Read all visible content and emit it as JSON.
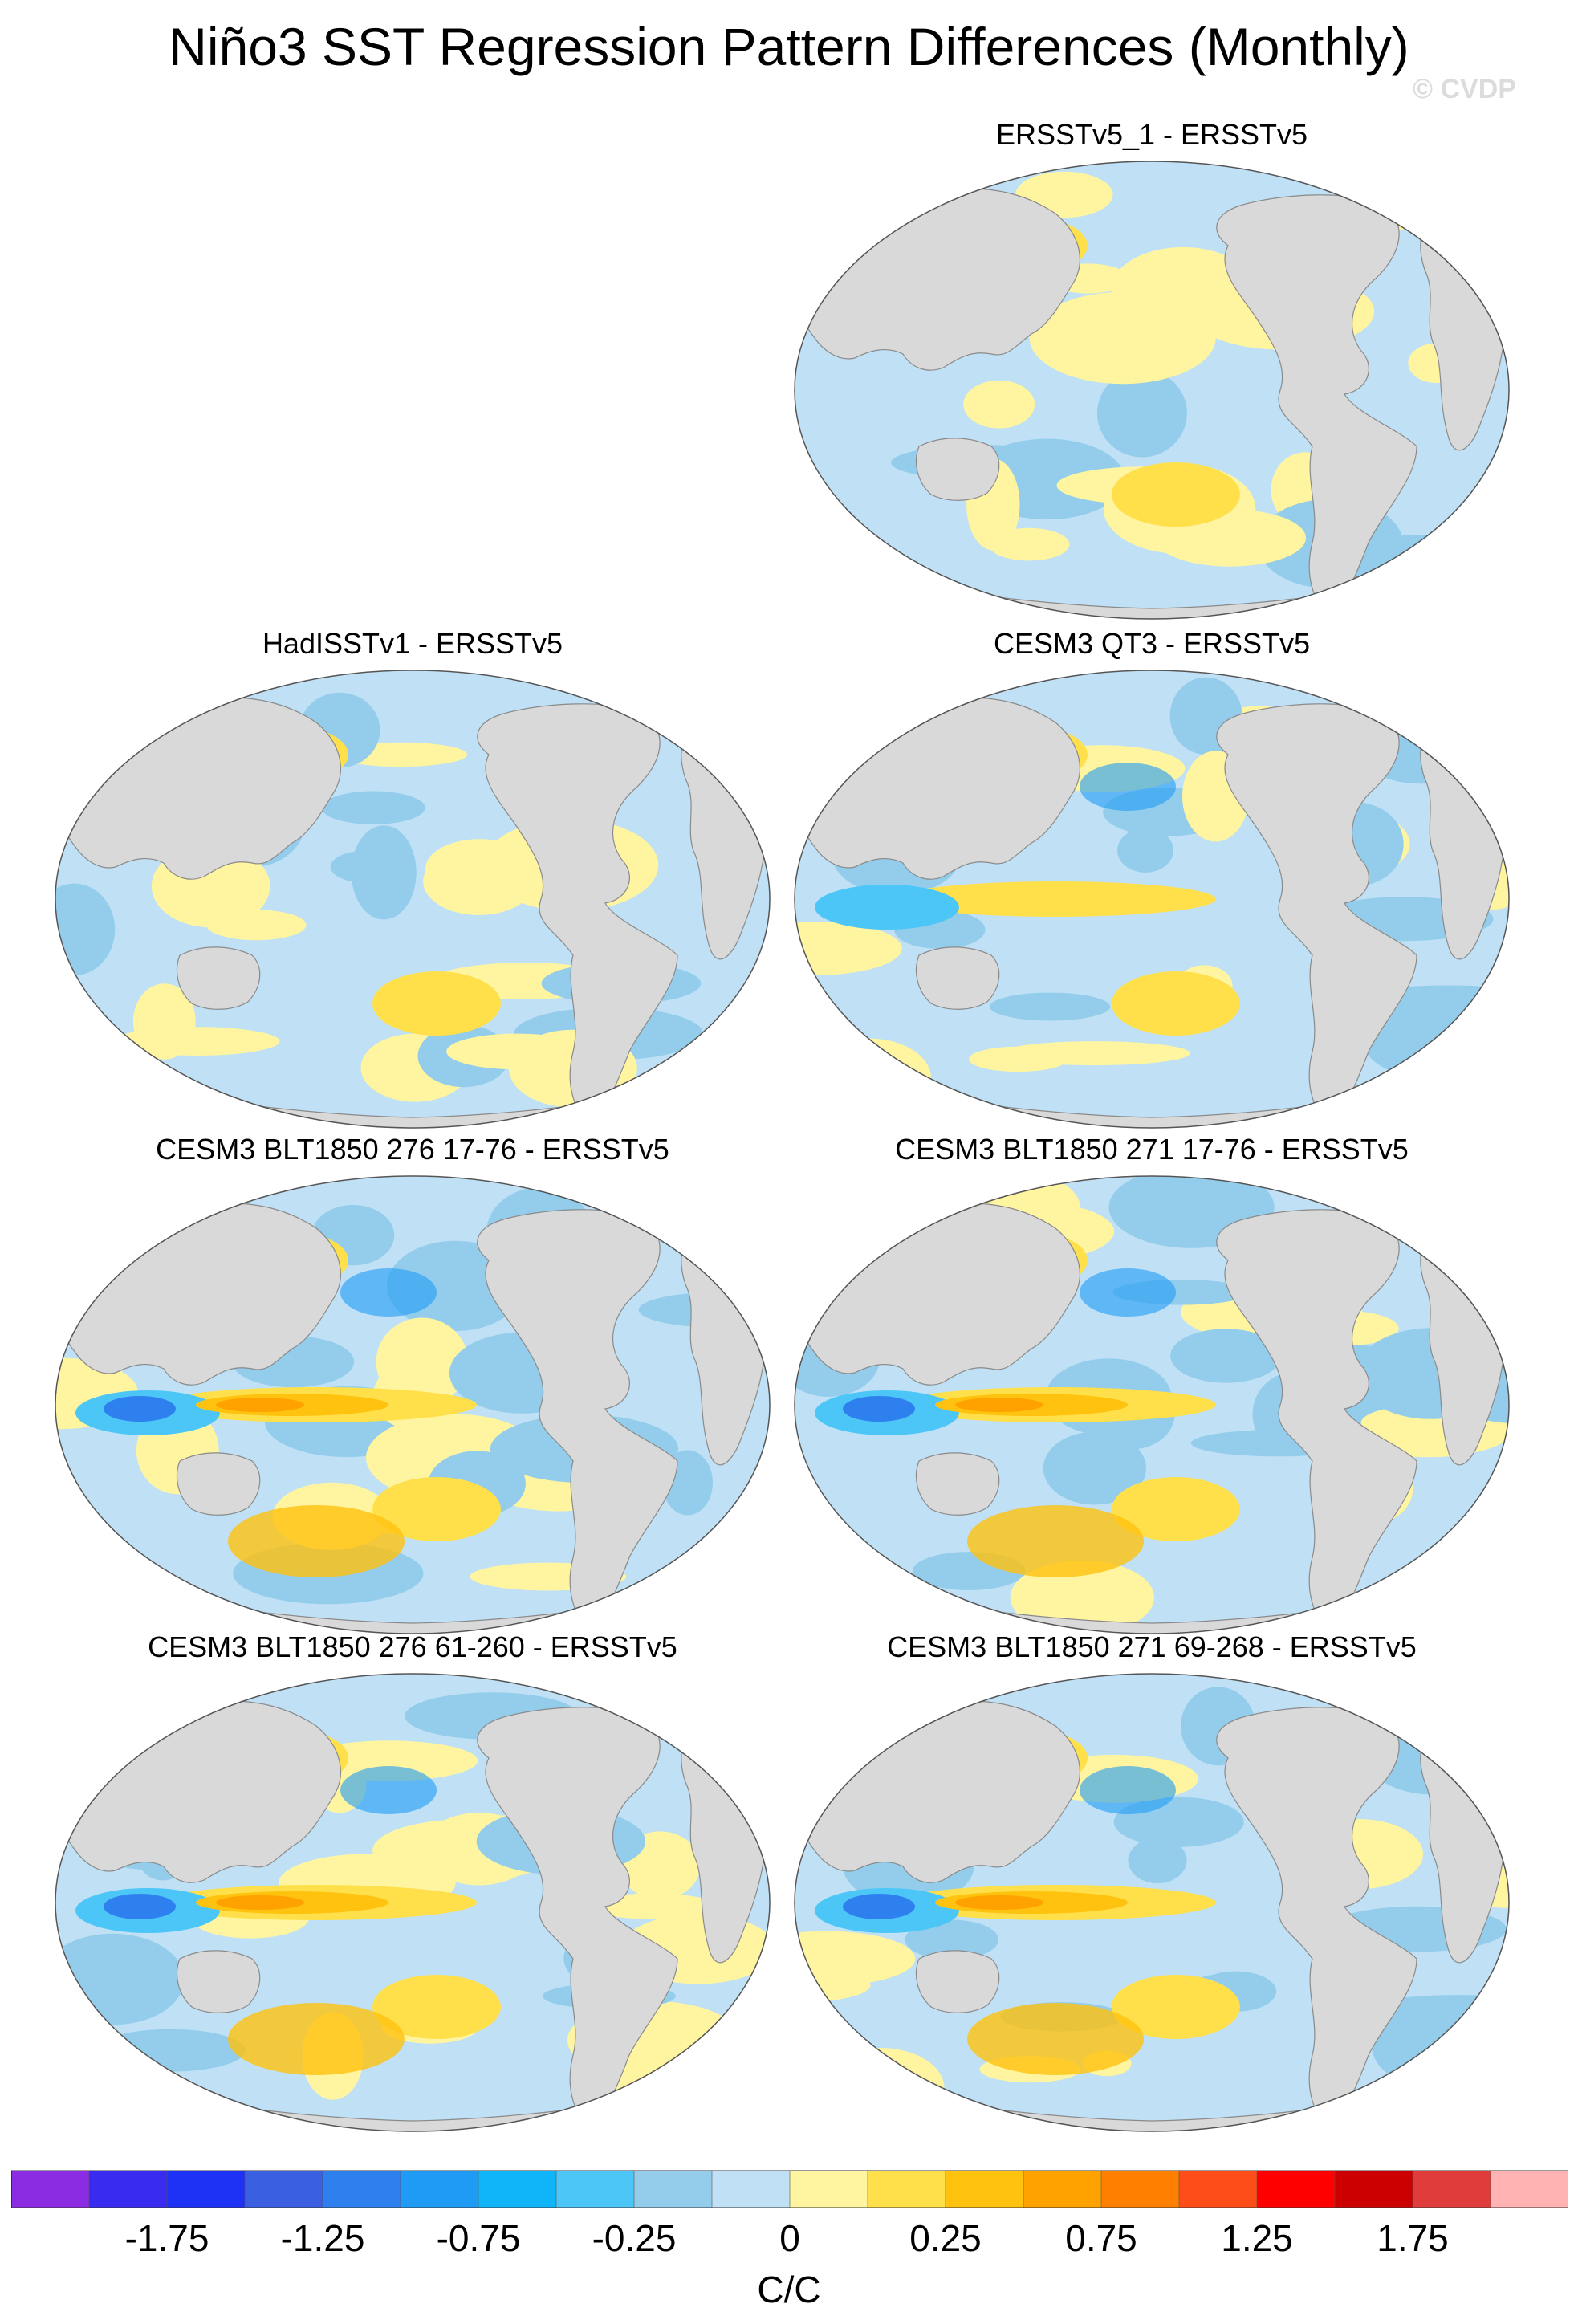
{
  "title": "Niño3 SST Regression Pattern Differences (Monthly)",
  "copyright": "© CVDP",
  "colors": {
    "ocean_base": "#bfe0f5",
    "land": "#d9d9d9",
    "land_outline": "#8a8a8a"
  },
  "panels": [
    {
      "title": "ERSSTv5_1 - ERSSTv5",
      "intensity": 1
    },
    {
      "title": "HadISSTv1 - ERSSTv5",
      "intensity": 1
    },
    {
      "title": "CESM3 QT3 - ERSSTv5",
      "intensity": 2
    },
    {
      "title": "CESM3 BLT1850 276 17-76 - ERSSTv5",
      "intensity": 3
    },
    {
      "title": "CESM3 BLT1850 271 17-76 - ERSSTv5",
      "intensity": 3
    },
    {
      "title": "CESM3 BLT1850 276 61-260 - ERSSTv5",
      "intensity": 3
    },
    {
      "title": "CESM3 BLT1850 271 69-268 - ERSSTv5",
      "intensity": 3
    }
  ],
  "colorbar": {
    "units": "C/C",
    "labels": [
      "-1.75",
      "-1.25",
      "-0.75",
      "-0.25",
      "0",
      "0.25",
      "0.75",
      "1.25",
      "1.75"
    ],
    "colors": [
      "#8b2be2",
      "#3a2bf0",
      "#1e32f5",
      "#3a5fe0",
      "#2f80ef",
      "#1f9bf5",
      "#0fb5f8",
      "#4cc6f7",
      "#93cdeb",
      "#bfe0f5",
      "#fff5a0",
      "#ffe04a",
      "#ffc20e",
      "#ffa200",
      "#ff7f00",
      "#ff4d1a",
      "#ff0000",
      "#cc0000",
      "#e03c3c",
      "#ffb3b3"
    ]
  }
}
